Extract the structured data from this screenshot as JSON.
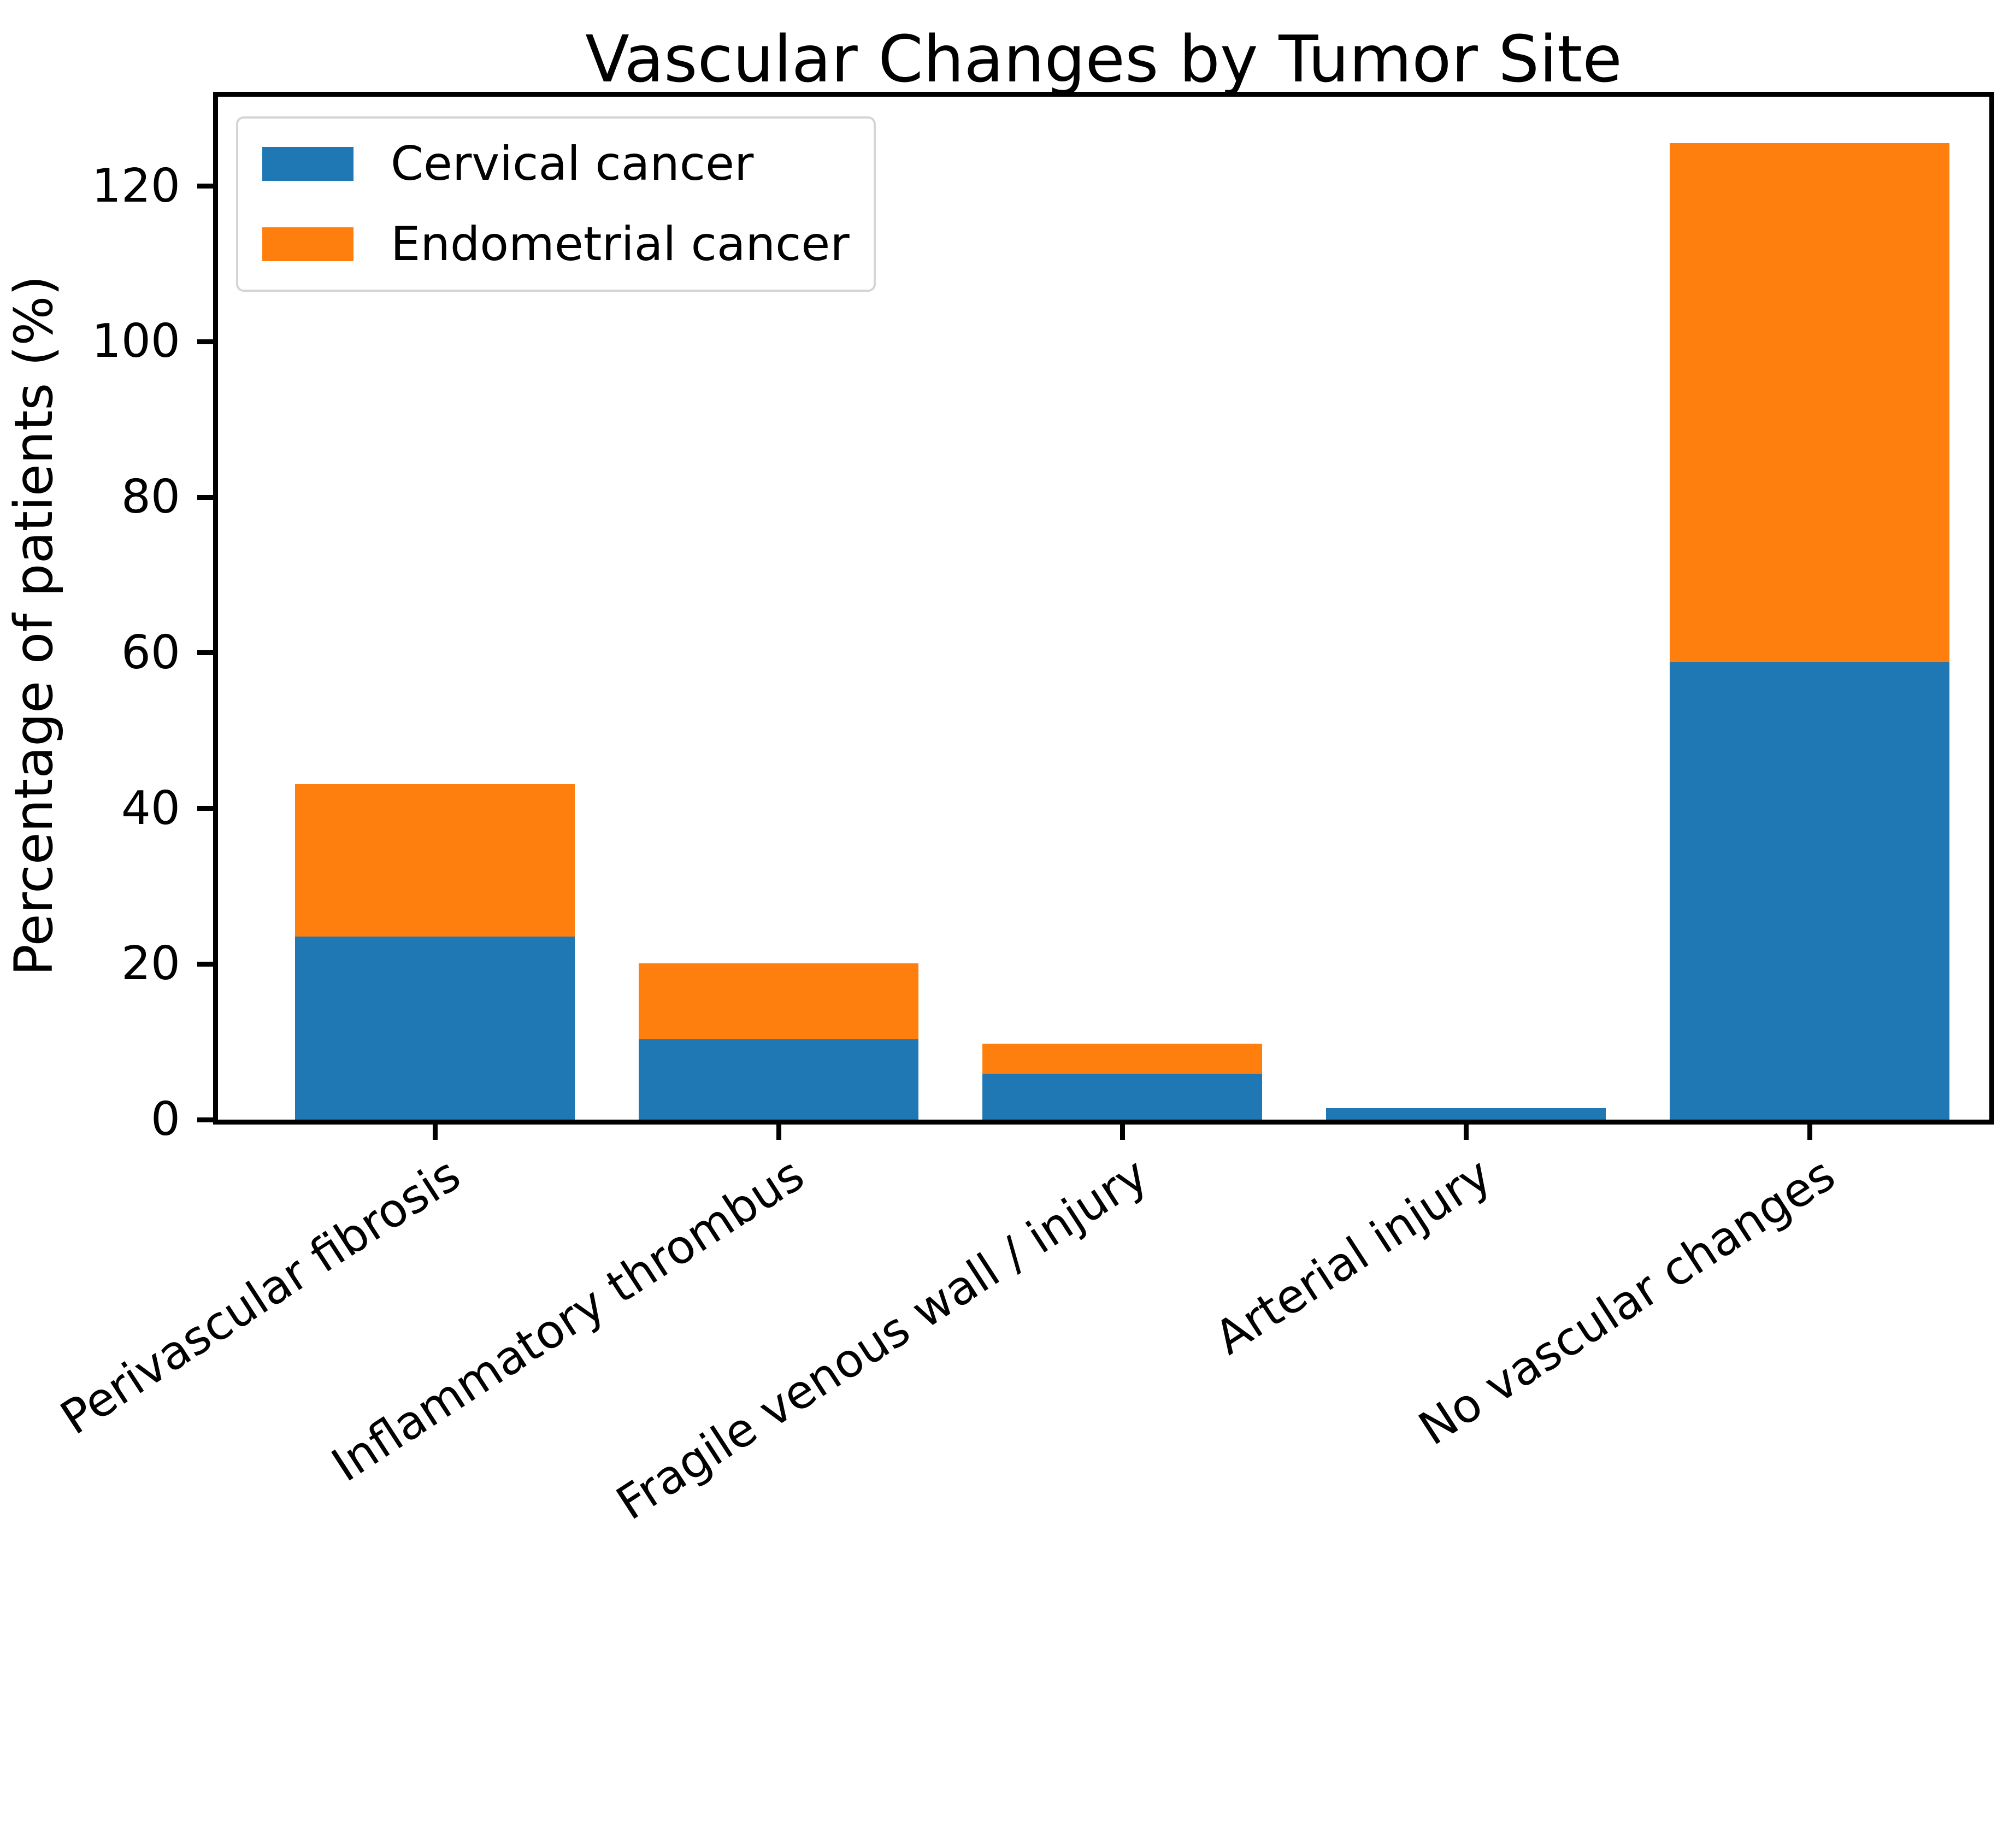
{
  "chart_data": {
    "type": "bar",
    "stacked": true,
    "title": "Vascular Changes by Tumor Site",
    "xlabel": "",
    "ylabel": "Percentage of patients (%)",
    "categories": [
      "Perivascular fibrosis",
      "Inflammatory thrombus",
      "Fragile venous wall / injury",
      "Arterial injury",
      "No vascular changes"
    ],
    "series": [
      {
        "name": "Cervical cancer",
        "color": "#1f77b4",
        "values": [
          23.5,
          10.3,
          5.9,
          1.5,
          58.8
        ]
      },
      {
        "name": "Endometrial cancer",
        "color": "#ff7f0e",
        "values": [
          19.6,
          9.8,
          3.9,
          0,
          66.7
        ]
      }
    ],
    "stack_totals": [
      43.1,
      20.1,
      9.8,
      1.5,
      125.5
    ],
    "yticks": [
      0,
      20,
      40,
      60,
      80,
      100,
      120
    ],
    "ylim": [
      0,
      131.5
    ],
    "x_tick_rotation_deg": 33,
    "legend_position": "upper left",
    "grid": false
  },
  "colors": {
    "background": "#ffffff",
    "spine": "#000000",
    "text": "#000000",
    "legend_border": "#d5d5d5",
    "cervical": "#1f77b4",
    "endometrial": "#ff7f0e"
  }
}
